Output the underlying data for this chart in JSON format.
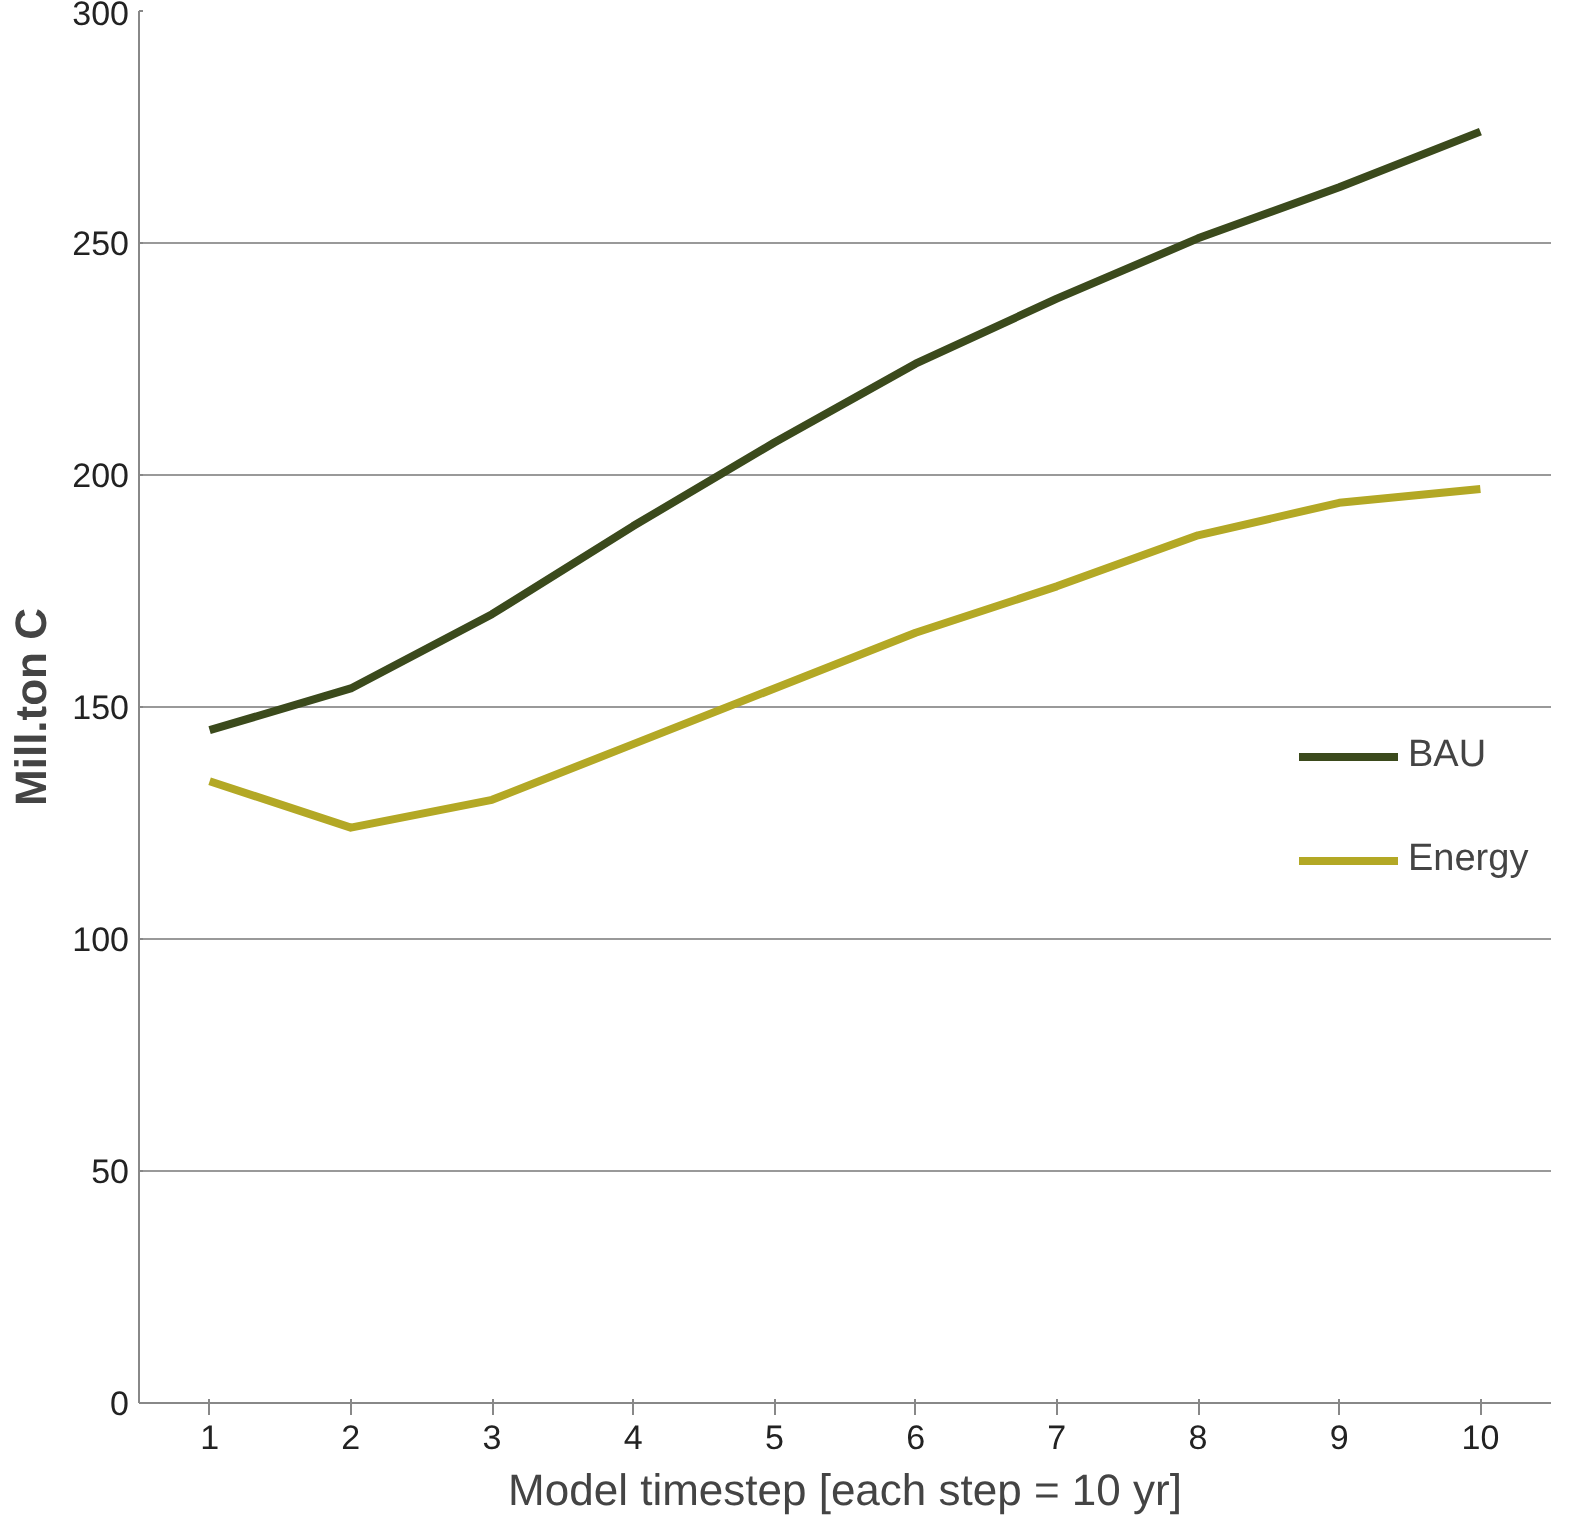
{
  "chart_data": {
    "type": "line",
    "xlabel": "Model timestep [each step = 10 yr]",
    "ylabel": "Mill.ton C",
    "categories": [
      "1",
      "2",
      "3",
      "4",
      "5",
      "6",
      "7",
      "8",
      "9",
      "10"
    ],
    "series": [
      {
        "name": "BAU",
        "color": "#3b4a1c",
        "values": [
          145,
          154,
          170,
          189,
          207,
          224,
          238,
          251,
          262,
          274
        ]
      },
      {
        "name": "Energy",
        "color": "#b3a825",
        "values": [
          134,
          124,
          130,
          142,
          154,
          166,
          176,
          187,
          194,
          197
        ]
      }
    ],
    "ylim": [
      0,
      300
    ],
    "yticks": [
      0,
      50,
      100,
      150,
      200,
      250,
      300
    ],
    "grid": "y",
    "legend": "right",
    "marker": "none",
    "line_style": "solid"
  }
}
